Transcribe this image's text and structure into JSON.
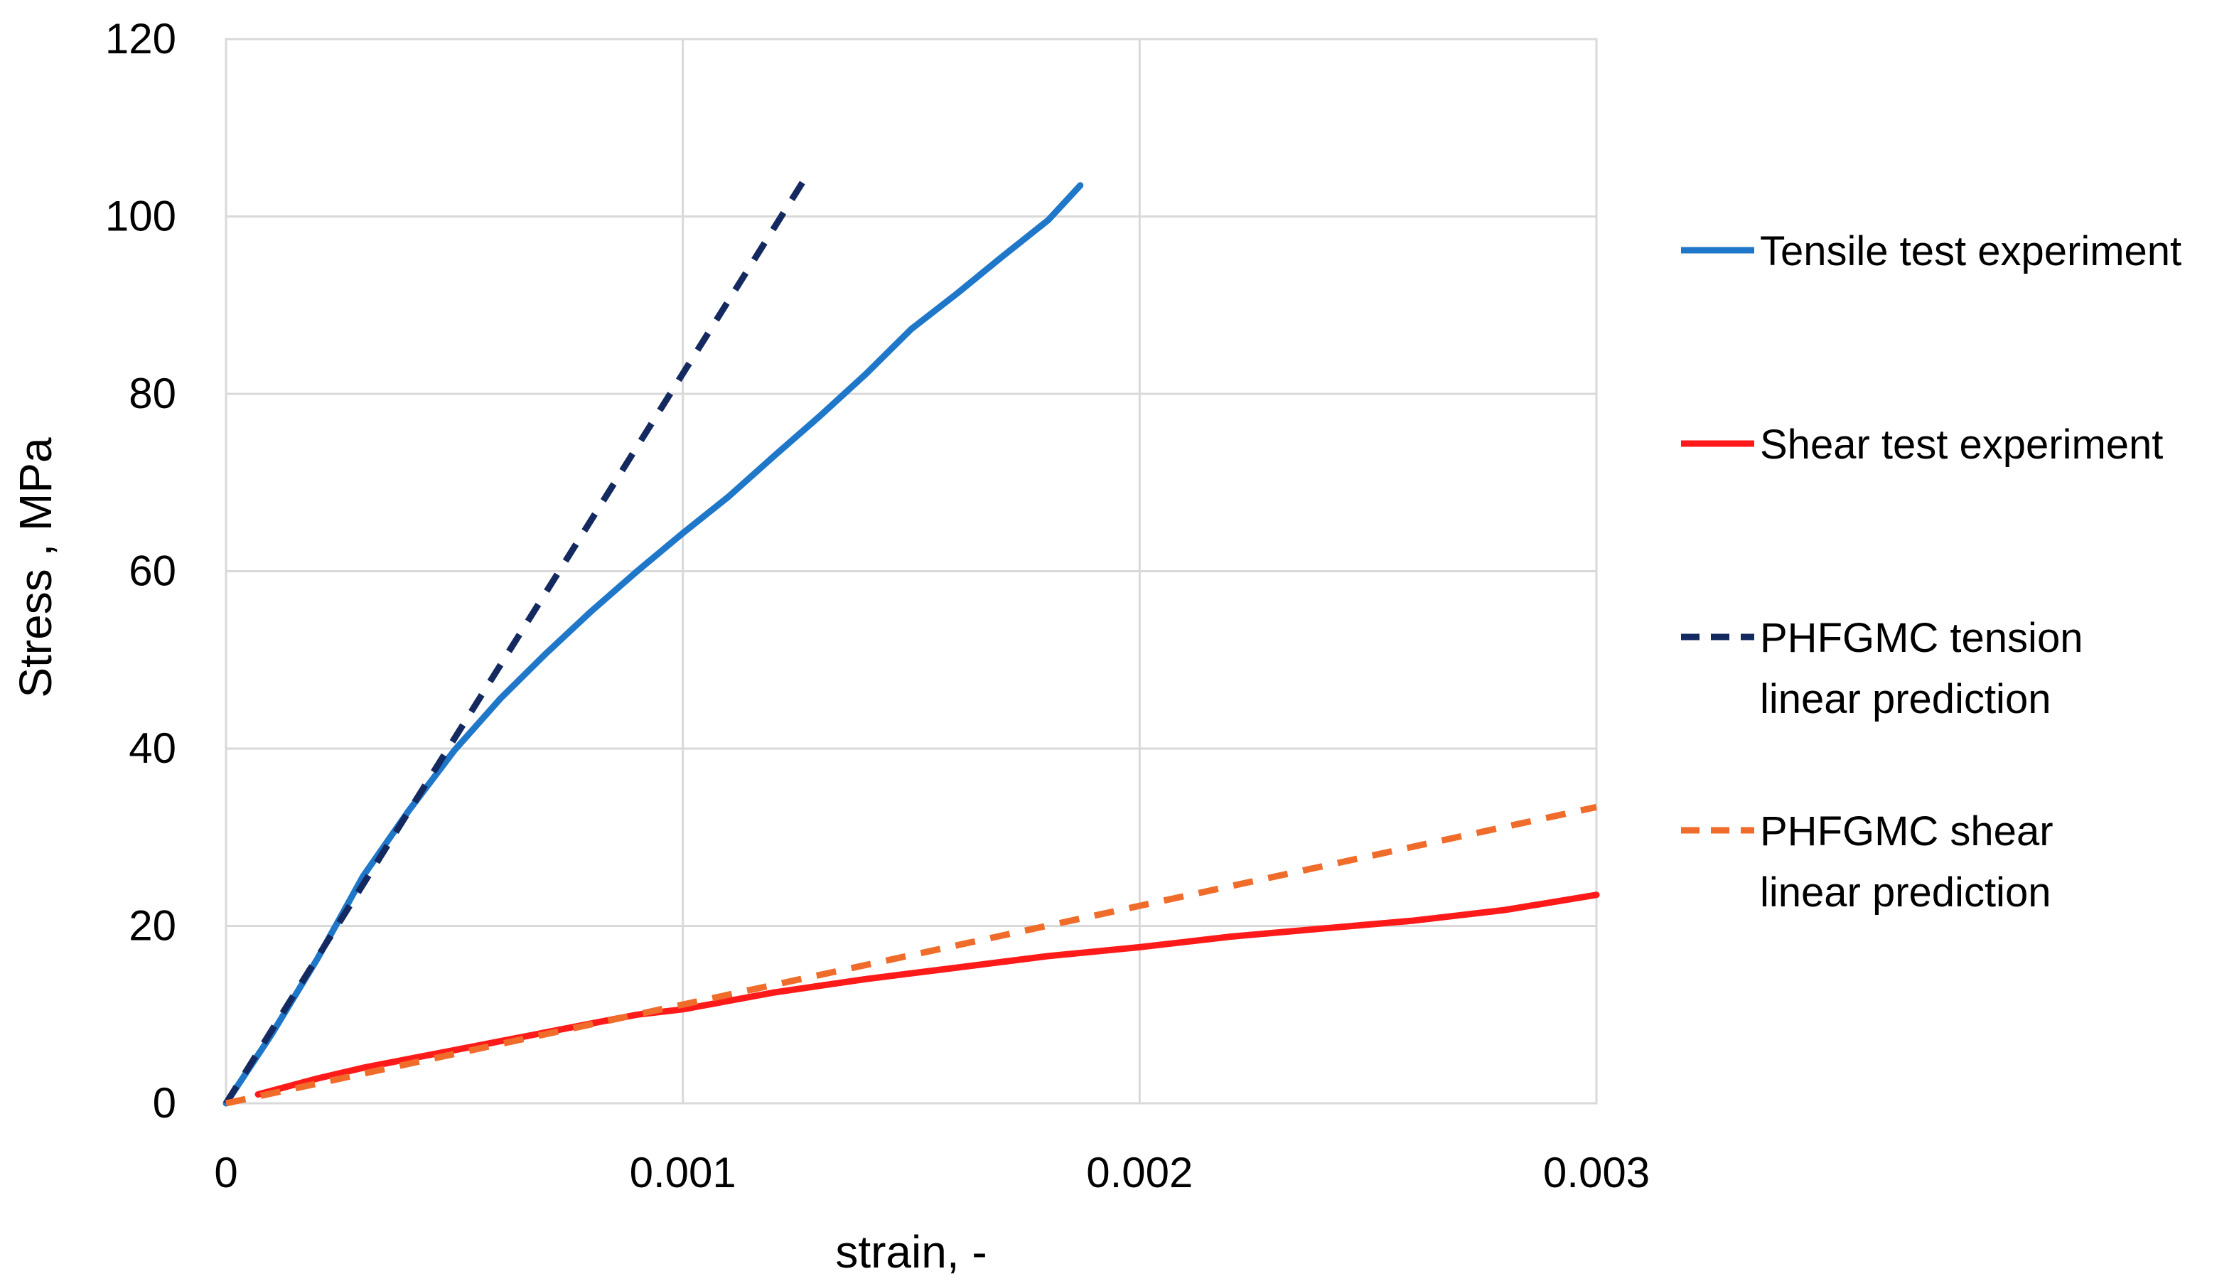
{
  "chart_data": {
    "type": "line",
    "xlabel": "strain, -",
    "ylabel": "Stress , MPa",
    "xlim": [
      0,
      0.003
    ],
    "ylim": [
      0,
      120
    ],
    "x_ticks": [
      "0",
      "0.001",
      "0.002",
      "0.003"
    ],
    "y_ticks": [
      "0",
      "20",
      "40",
      "60",
      "80",
      "100",
      "120"
    ],
    "grid": true,
    "legend_position": "right",
    "series": [
      {
        "name": "Tensile test experiment",
        "color": "#1f77c9",
        "style": "solid",
        "x": [
          0,
          0.0001,
          0.0002,
          0.0003,
          0.0004,
          0.0005,
          0.0006,
          0.0007,
          0.0008,
          0.0009,
          0.001,
          0.0011,
          0.0012,
          0.0013,
          0.0014,
          0.0015,
          0.0016,
          0.0017,
          0.0018,
          0.00187
        ],
        "y": [
          0,
          7.8,
          16.3,
          25.6,
          33.0,
          39.8,
          45.6,
          50.7,
          55.5,
          60.0,
          64.3,
          68.4,
          73.0,
          77.5,
          82.2,
          87.3,
          91.3,
          95.5,
          99.6,
          103.5
        ]
      },
      {
        "name": "Shear test experiment",
        "color": "#ff1a1a",
        "style": "solid",
        "x": [
          7e-05,
          0.0002,
          0.0003,
          0.0004,
          0.0005,
          0.0006,
          0.0007,
          0.0008,
          0.0009,
          0.001,
          0.0012,
          0.0014,
          0.0016,
          0.0018,
          0.002,
          0.0022,
          0.0024,
          0.0026,
          0.0028,
          0.003
        ],
        "y": [
          1.0,
          2.8,
          4.0,
          5.0,
          6.0,
          7.0,
          8.0,
          9.0,
          10.0,
          10.6,
          12.5,
          14.0,
          15.3,
          16.6,
          17.6,
          18.8,
          19.7,
          20.6,
          21.8,
          23.5
        ]
      },
      {
        "name": "PHFGMC tension linear prediction",
        "color": "#13295f",
        "style": "dashed",
        "x": [
          0,
          0.00127
        ],
        "y": [
          0,
          104.5
        ]
      },
      {
        "name": "PHFGMC shear linear prediction",
        "color": "#ef6c2a",
        "style": "dashed",
        "x": [
          0,
          0.003
        ],
        "y": [
          0,
          33.4
        ]
      }
    ],
    "legend_labels": [
      [
        "Tensile test experiment"
      ],
      [
        "Shear test experiment"
      ],
      [
        "PHFGMC tension",
        "linear prediction"
      ],
      [
        "PHFGMC shear",
        "linear prediction"
      ]
    ]
  }
}
